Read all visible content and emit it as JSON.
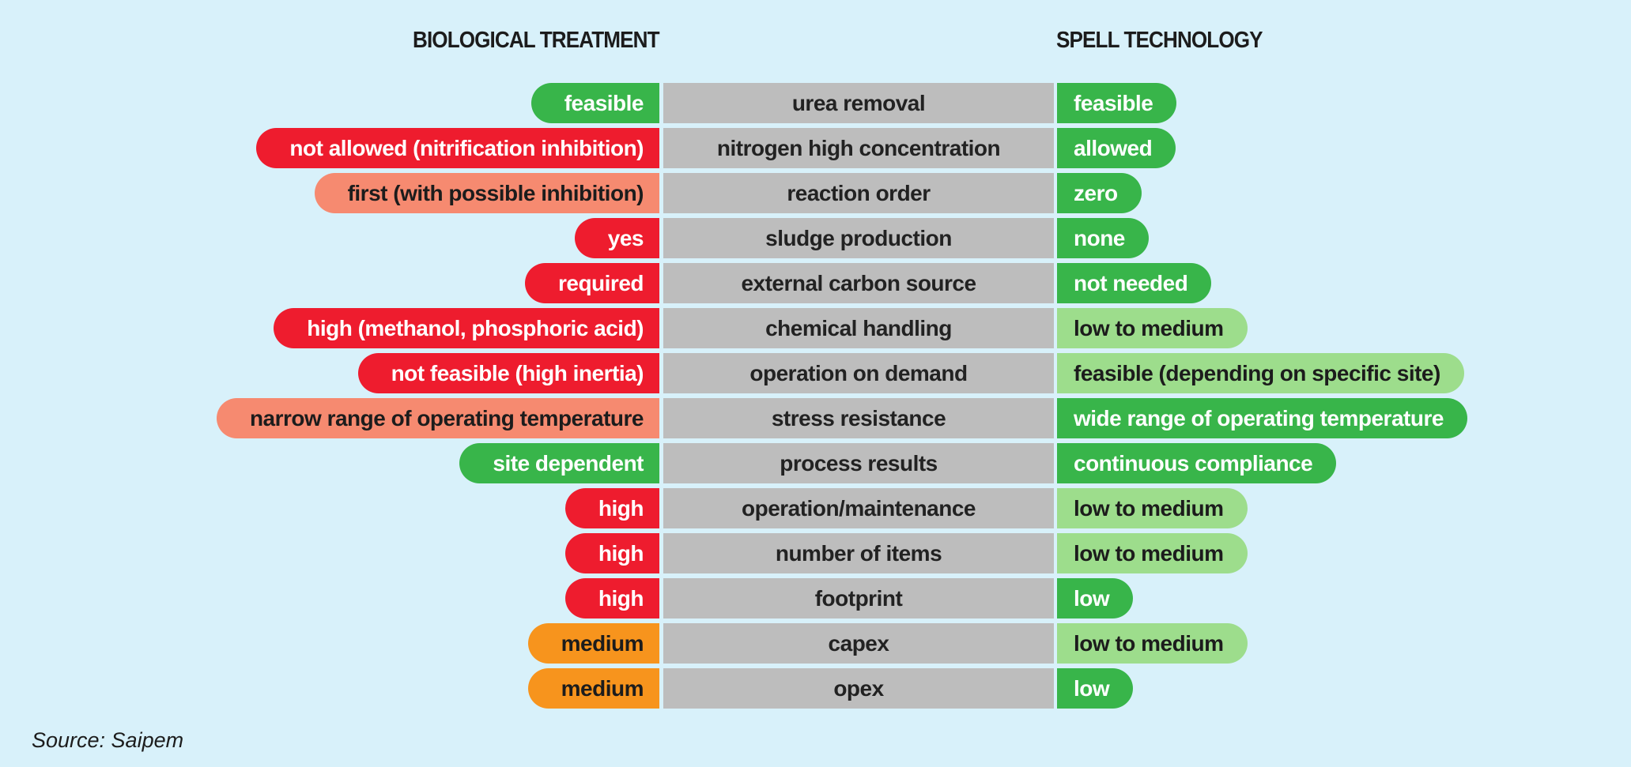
{
  "headers": {
    "left": "BIOLOGICAL TREATMENT",
    "right": "SPELL TECHNOLOGY"
  },
  "colors": {
    "background": "#d8f1fa",
    "middle": "#bdbdbd",
    "green": "#38b54a",
    "light_green": "#9ddd8c",
    "red": "#ee1c2e",
    "salmon": "#f68a70",
    "orange": "#f7941d"
  },
  "rows": [
    {
      "left": "feasible",
      "left_color": "green",
      "middle": "urea removal",
      "right": "feasible",
      "right_color": "green"
    },
    {
      "left": "not allowed (nitrification inhibition)",
      "left_color": "red",
      "middle": "nitrogen high concentration",
      "right": "allowed",
      "right_color": "green"
    },
    {
      "left": "first (with possible inhibition)",
      "left_color": "salmon",
      "middle": "reaction order",
      "right": "zero",
      "right_color": "green"
    },
    {
      "left": "yes",
      "left_color": "red",
      "middle": "sludge production",
      "right": "none",
      "right_color": "green"
    },
    {
      "left": "required",
      "left_color": "red",
      "middle": "external carbon source",
      "right": "not needed",
      "right_color": "green"
    },
    {
      "left": "high (methanol, phosphoric acid)",
      "left_color": "red",
      "middle": "chemical handling",
      "right": "low to medium",
      "right_color": "light_green"
    },
    {
      "left": "not feasible (high inertia)",
      "left_color": "red",
      "middle": "operation on demand",
      "right": "feasible (depending on specific site)",
      "right_color": "light_green"
    },
    {
      "left": "narrow range of operating temperature",
      "left_color": "salmon",
      "middle": "stress resistance",
      "right": "wide range of operating temperature",
      "right_color": "green"
    },
    {
      "left": "site dependent",
      "left_color": "green",
      "middle": "process results",
      "right": "continuous compliance",
      "right_color": "green"
    },
    {
      "left": "high",
      "left_color": "red",
      "middle": "operation/maintenance",
      "right": "low to medium",
      "right_color": "light_green"
    },
    {
      "left": "high",
      "left_color": "red",
      "middle": "number of items",
      "right": "low to medium",
      "right_color": "light_green"
    },
    {
      "left": "high",
      "left_color": "red",
      "middle": "footprint",
      "right": "low",
      "right_color": "green"
    },
    {
      "left": "medium",
      "left_color": "orange",
      "middle": "capex",
      "right": "low to medium",
      "right_color": "light_green"
    },
    {
      "left": "medium",
      "left_color": "orange",
      "middle": "opex",
      "right": "low",
      "right_color": "green"
    }
  ],
  "source": "Source: Saipem"
}
